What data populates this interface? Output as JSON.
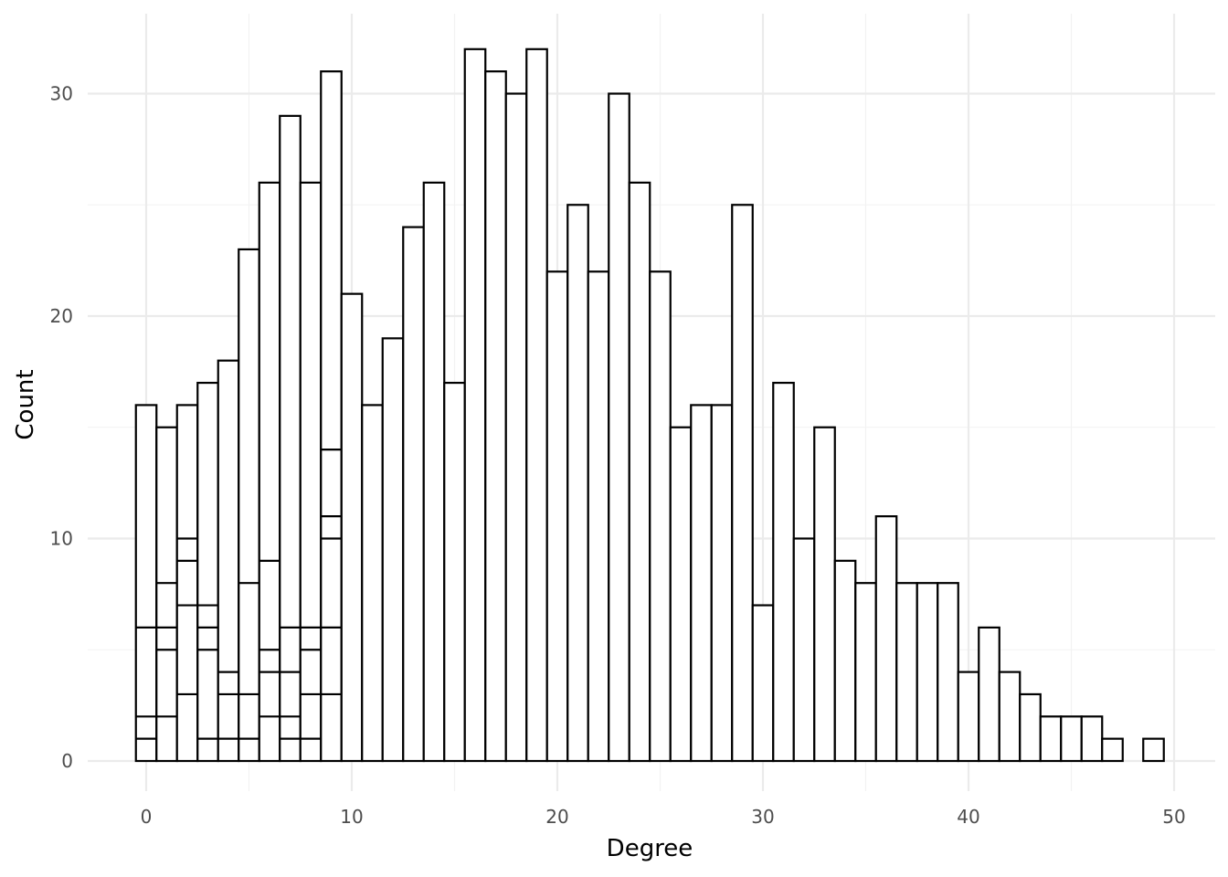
{
  "chart_data": {
    "type": "bar",
    "title": "",
    "xlabel": "Degree",
    "ylabel": "Count",
    "xlim": [
      -0.5,
      49.5
    ],
    "ylim": [
      0,
      32
    ],
    "x_ticks": [
      0,
      10,
      20,
      30,
      40,
      50
    ],
    "y_ticks": [
      0,
      10,
      20,
      30
    ],
    "grid": true,
    "legend": "none",
    "fill_color": "#ffffff",
    "outline_color": "#000000",
    "x": [
      0,
      1,
      2,
      3,
      4,
      5,
      6,
      7,
      8,
      9,
      10,
      11,
      12,
      13,
      14,
      15,
      16,
      17,
      18,
      19,
      20,
      21,
      22,
      23,
      24,
      25,
      26,
      27,
      28,
      29,
      30,
      31,
      32,
      33,
      34,
      35,
      36,
      37,
      38,
      39,
      40,
      41,
      42,
      43,
      44,
      45,
      46,
      47,
      49
    ],
    "values": [
      16,
      15,
      16,
      17,
      18,
      23,
      26,
      29,
      26,
      31,
      21,
      16,
      19,
      24,
      26,
      17,
      32,
      31,
      30,
      32,
      22,
      25,
      22,
      30,
      26,
      22,
      15,
      16,
      16,
      25,
      7,
      17,
      10,
      15,
      9,
      8,
      11,
      8,
      8,
      8,
      4,
      6,
      4,
      3,
      2,
      2,
      2,
      1,
      1
    ],
    "stack_boundaries": [
      [
        1,
        2,
        6
      ],
      [
        2,
        5,
        6,
        8
      ],
      [
        3,
        7,
        9,
        10
      ],
      [
        1,
        5,
        6,
        7
      ],
      [
        1,
        3,
        4
      ],
      [
        1,
        3,
        8
      ],
      [
        2,
        4,
        5,
        9
      ],
      [
        1,
        2,
        4,
        6
      ],
      [
        1,
        3,
        5,
        6
      ],
      [
        3,
        6,
        10,
        11,
        14
      ],
      [],
      [],
      [],
      [],
      [],
      [],
      [],
      [],
      [],
      [],
      [],
      [],
      [],
      [],
      [],
      [],
      [],
      [],
      [],
      [],
      [],
      [],
      [],
      [],
      [],
      [],
      [],
      [],
      [],
      [],
      [],
      [],
      [],
      [],
      [],
      [],
      [],
      [],
      []
    ]
  }
}
